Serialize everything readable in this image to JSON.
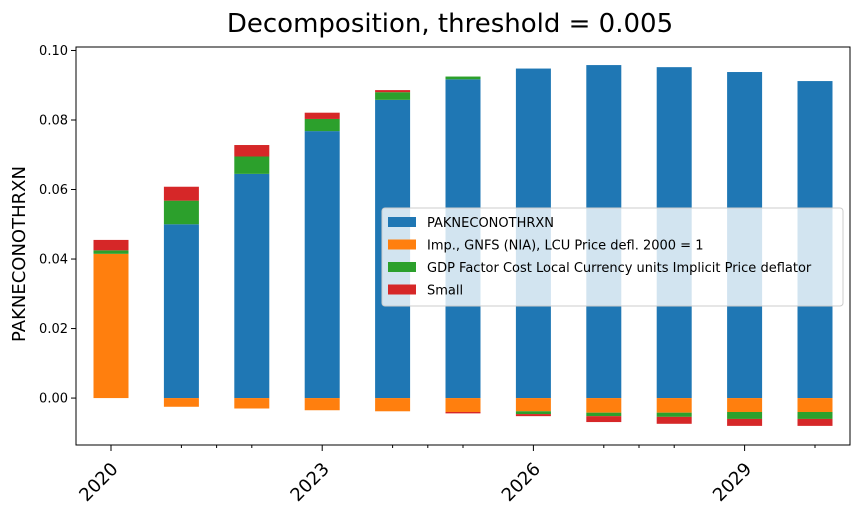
{
  "chart_data": {
    "type": "bar",
    "stacked": true,
    "title": "Decomposition, threshold = 0.005",
    "xlabel": "",
    "ylabel": "PAKNECONOTHRXN",
    "categories": [
      "2020",
      "2021",
      "2022",
      "2023",
      "2024",
      "2025",
      "2026",
      "2027",
      "2028",
      "2029",
      "2030"
    ],
    "x_tick_labels": [
      "2020",
      "2023",
      "2026",
      "2029"
    ],
    "ylim": [
      -0.0135,
      0.101
    ],
    "y_ticks": [
      0.0,
      0.02,
      0.04,
      0.06,
      0.08,
      0.1
    ],
    "y_tick_labels": [
      "0.00",
      "0.02",
      "0.04",
      "0.06",
      "0.08",
      "0.10"
    ],
    "grid": false,
    "legend_position": "center-right",
    "series": [
      {
        "name": "PAKNECONOTHRXN",
        "color": "#1f77b4",
        "values": [
          0.0,
          0.05,
          0.0645,
          0.0768,
          0.0858,
          0.0917,
          0.0948,
          0.0958,
          0.0952,
          0.0938,
          0.0912
        ]
      },
      {
        "name": "Imp., GNFS (NIA), LCU Price defl. 2000 = 1",
        "color": "#ff7f0e",
        "values": [
          0.0415,
          -0.0025,
          -0.003,
          -0.0035,
          -0.0038,
          -0.004,
          -0.0038,
          -0.0042,
          -0.0042,
          -0.004,
          -0.004
        ]
      },
      {
        "name": "GDP Factor Cost Local Currency units Implicit Price deflator",
        "color": "#2ca02c",
        "values": [
          0.001,
          0.0068,
          0.005,
          0.0035,
          0.0022,
          0.0008,
          -0.0008,
          -0.001,
          -0.0012,
          -0.002,
          -0.002
        ]
      },
      {
        "name": "Small",
        "color": "#d62728",
        "values": [
          0.003,
          0.004,
          0.0033,
          0.0018,
          0.0006,
          -0.0004,
          -0.0006,
          -0.0017,
          -0.002,
          -0.002,
          -0.002
        ]
      }
    ]
  }
}
